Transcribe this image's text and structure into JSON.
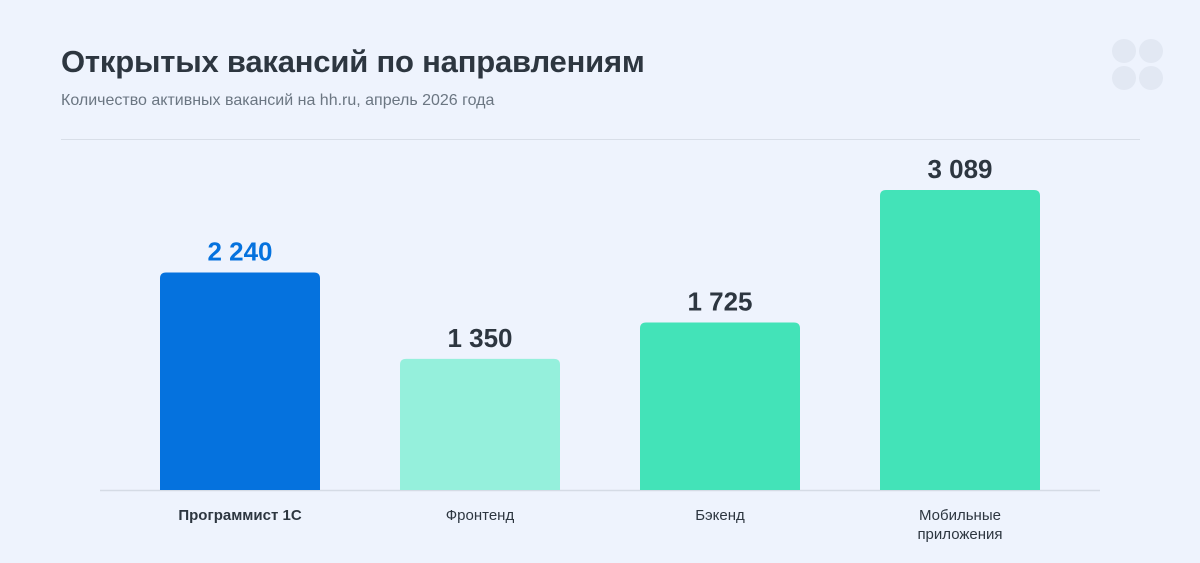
{
  "header": {
    "title": "Открытых вакансий по направлениям",
    "subtitle": "Количество активных вакансий на hh.ru, апрель 2026 года"
  },
  "colors": {
    "highlight": "#0572de",
    "light": "#95f0dc",
    "medium": "#43e3b8",
    "text_dark": "#2d3640",
    "axis": "#d5dbe5"
  },
  "chart_data": {
    "type": "bar",
    "title": "Открытых вакансий по направлениям",
    "subtitle": "Количество активных вакансий на hh.ru, апрель 2026 года",
    "categories": [
      "Программист 1С",
      "Фронтенд",
      "Бэкенд",
      "Мобильные приложения"
    ],
    "category_lines": [
      [
        "Программист 1С"
      ],
      [
        "Фронтенд"
      ],
      [
        "Бэкенд"
      ],
      [
        "Мобильные",
        "приложения"
      ]
    ],
    "values": [
      2240,
      1350,
      1725,
      3089
    ],
    "value_labels": [
      "2 240",
      "1 350",
      "1 725",
      "3 089"
    ],
    "bar_colors": [
      "#0572de",
      "#95f0dc",
      "#43e3b8",
      "#43e3b8"
    ],
    "highlighted_index": 0,
    "grid": false,
    "legend": "none",
    "xlabel": "",
    "ylabel": ""
  }
}
